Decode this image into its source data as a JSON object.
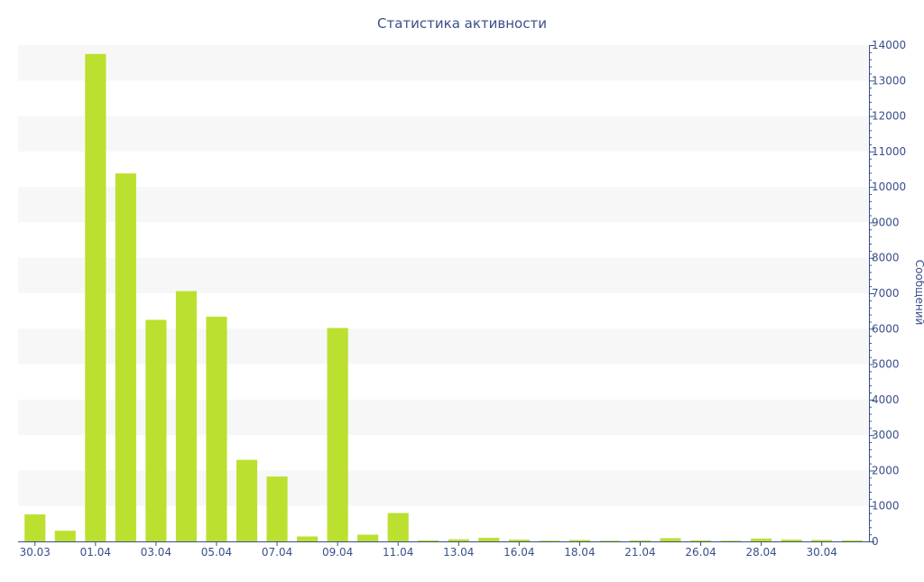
{
  "chart_data": {
    "type": "bar",
    "title": "Статистика активности",
    "xlabel": "",
    "ylabel": "Сообщений",
    "ylim": [
      0,
      14000
    ],
    "yticks": [
      0,
      1000,
      2000,
      3000,
      4000,
      5000,
      6000,
      7000,
      8000,
      9000,
      10000,
      11000,
      12000,
      13000,
      14000
    ],
    "y_axis_side": "right",
    "grid": "alternating horizontal bands",
    "categories": [
      "30.03",
      "31.03",
      "01.04",
      "02.04",
      "03.04",
      "04.04",
      "05.04",
      "06.04",
      "07.04",
      "08.04",
      "09.04",
      "10.04",
      "11.04",
      "12.04",
      "13.04",
      "14.04",
      "16.04",
      "17.04",
      "18.04",
      "19.04",
      "21.04",
      "24.04",
      "26.04",
      "27.04",
      "28.04",
      "29.04",
      "30.04",
      "01.05"
    ],
    "x_tick_labels": [
      "30.03",
      "01.04",
      "03.04",
      "05.04",
      "07.04",
      "09.04",
      "11.04",
      "13.04",
      "16.04",
      "18.04",
      "21.04",
      "26.04",
      "28.04",
      "30.04"
    ],
    "values": [
      760,
      300,
      13750,
      10380,
      6250,
      7060,
      6340,
      2300,
      1830,
      140,
      6020,
      190,
      800,
      30,
      60,
      100,
      50,
      20,
      40,
      20,
      30,
      90,
      30,
      20,
      80,
      50,
      40,
      30
    ],
    "colors": {
      "bar": "#bbe02f",
      "axis": "#3a4f8a",
      "band": "#f7f7f7",
      "text": "#3a4f8a"
    }
  }
}
